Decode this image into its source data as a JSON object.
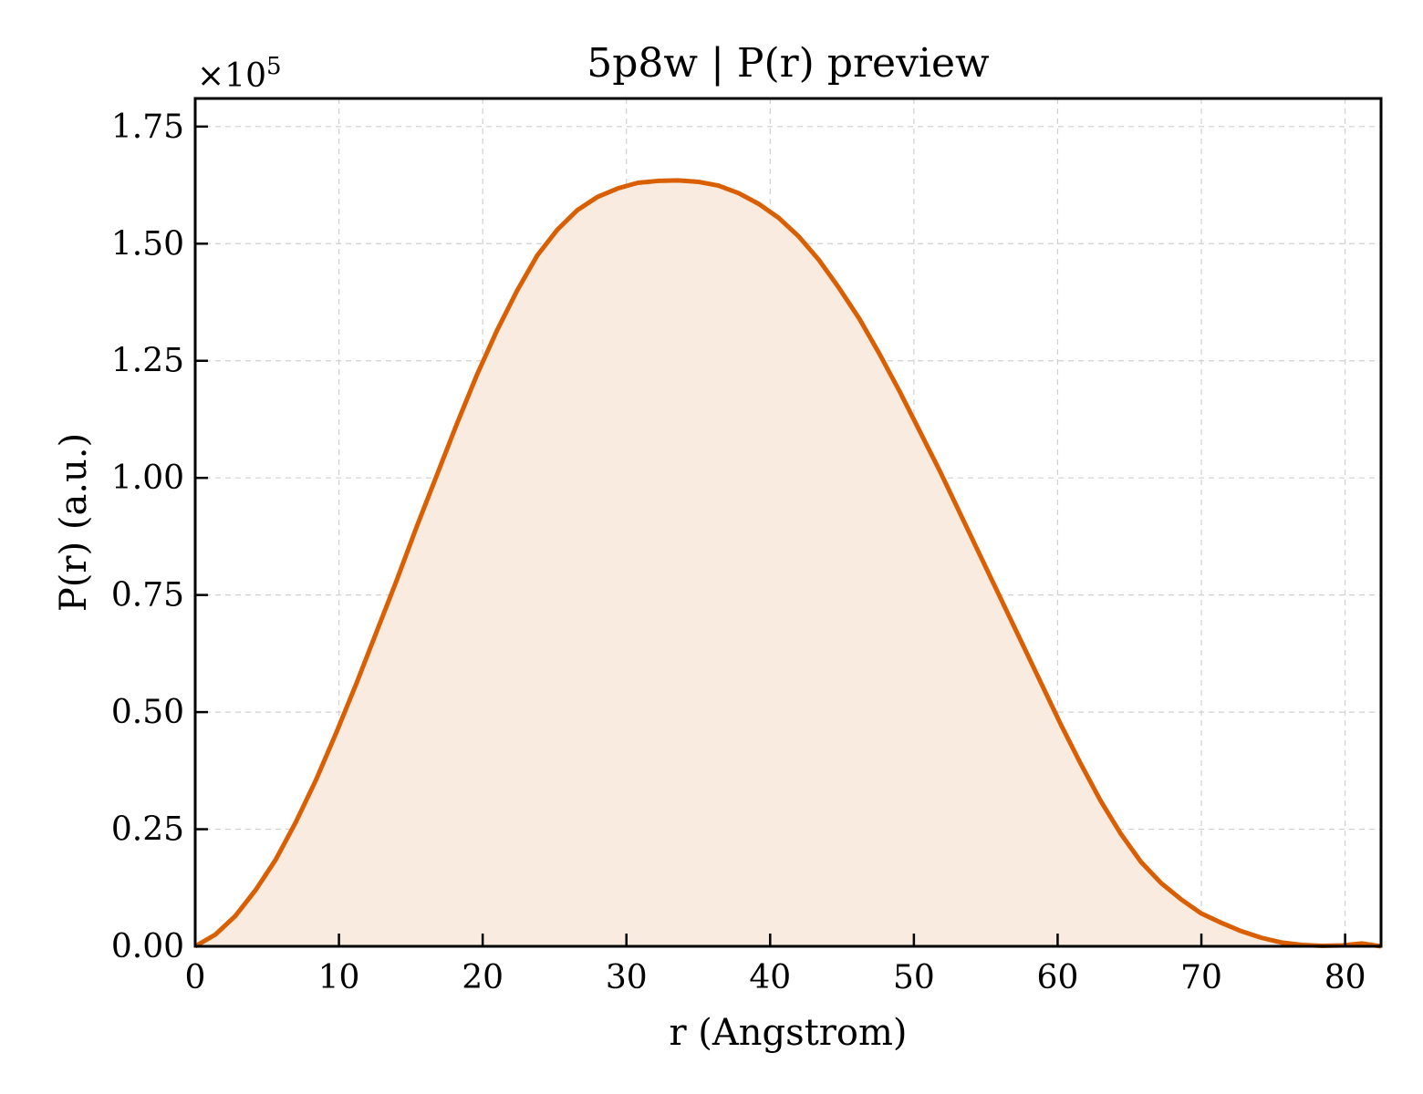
{
  "chart_data": {
    "type": "area",
    "title": "5p8w | P(r) preview",
    "xlabel": "r (Angstrom)",
    "ylabel": "P(r) (a.u.)",
    "y_multiplier_base": "×10",
    "y_multiplier_exp": "5",
    "xlim": [
      0,
      82.5
    ],
    "ylim": [
      0,
      1.81
    ],
    "xticks": [
      0,
      10,
      20,
      30,
      40,
      50,
      60,
      70,
      80
    ],
    "xtick_labels": [
      "0",
      "10",
      "20",
      "30",
      "40",
      "50",
      "60",
      "70",
      "80"
    ],
    "yticks": [
      0,
      0.25,
      0.5,
      0.75,
      1.0,
      1.25,
      1.5,
      1.75
    ],
    "ytick_labels": [
      "0.00",
      "0.25",
      "0.50",
      "0.75",
      "1.00",
      "1.25",
      "1.50",
      "1.75"
    ],
    "grid": true,
    "color": "#d95f02",
    "fill_color": "#f9ebe0",
    "series": [
      {
        "x": [
          0,
          1.4,
          2.8,
          4.2,
          5.6,
          7.0,
          8.4,
          9.8,
          11.2,
          12.6,
          14.0,
          15.4,
          16.8,
          18.2,
          19.6,
          21.0,
          22.4,
          23.8,
          25.2,
          26.6,
          28.0,
          29.4,
          30.8,
          32.2,
          33.6,
          35.0,
          36.4,
          37.8,
          39.2,
          40.6,
          42.0,
          43.4,
          44.8,
          46.2,
          47.6,
          49.0,
          50.4,
          51.8,
          53.2,
          54.6,
          56.0,
          57.4,
          58.8,
          60.2,
          61.6,
          63.0,
          64.4,
          65.8,
          67.2,
          68.6,
          70.0,
          71.4,
          72.8,
          74.2,
          75.6,
          77.0,
          78.4,
          79.8,
          81.2,
          82.5
        ],
        "y": [
          0.0,
          0.025,
          0.065,
          0.12,
          0.185,
          0.265,
          0.355,
          0.455,
          0.56,
          0.67,
          0.78,
          0.895,
          1.005,
          1.115,
          1.22,
          1.315,
          1.4,
          1.475,
          1.53,
          1.572,
          1.6,
          1.618,
          1.63,
          1.634,
          1.635,
          1.632,
          1.624,
          1.608,
          1.585,
          1.555,
          1.515,
          1.465,
          1.405,
          1.34,
          1.265,
          1.185,
          1.1,
          1.015,
          0.925,
          0.835,
          0.745,
          0.655,
          0.565,
          0.475,
          0.39,
          0.31,
          0.24,
          0.18,
          0.135,
          0.1,
          0.07,
          0.05,
          0.032,
          0.018,
          0.008,
          0.003,
          0.001,
          0.002,
          0.006,
          0.0
        ]
      }
    ]
  }
}
